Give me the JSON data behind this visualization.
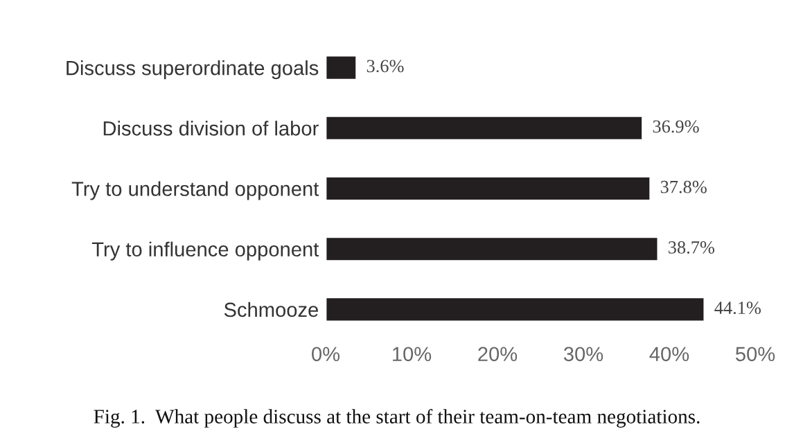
{
  "chart_data": {
    "type": "bar",
    "orientation": "horizontal",
    "categories": [
      "Discuss superordinate goals",
      "Discuss division of labor",
      "Try to understand opponent",
      "Try to influence opponent",
      "Schmooze"
    ],
    "values": [
      3.6,
      36.9,
      37.8,
      38.7,
      44.1
    ],
    "value_labels": [
      "3.6%",
      "36.9%",
      "37.8%",
      "38.7%",
      "44.1%"
    ],
    "color": "#231f20",
    "xlim": [
      0,
      50
    ],
    "xticks": [
      {
        "value": 0,
        "label": "0%"
      },
      {
        "value": 10,
        "label": "10%"
      },
      {
        "value": 20,
        "label": "20%"
      },
      {
        "value": 30,
        "label": "30%"
      },
      {
        "value": 40,
        "label": "40%"
      },
      {
        "value": 50,
        "label": "50%"
      }
    ],
    "grid": false,
    "legend": false,
    "annotations": [
      "Fig. 1.  What people discuss at the start of their team-on-team negotiations."
    ]
  }
}
